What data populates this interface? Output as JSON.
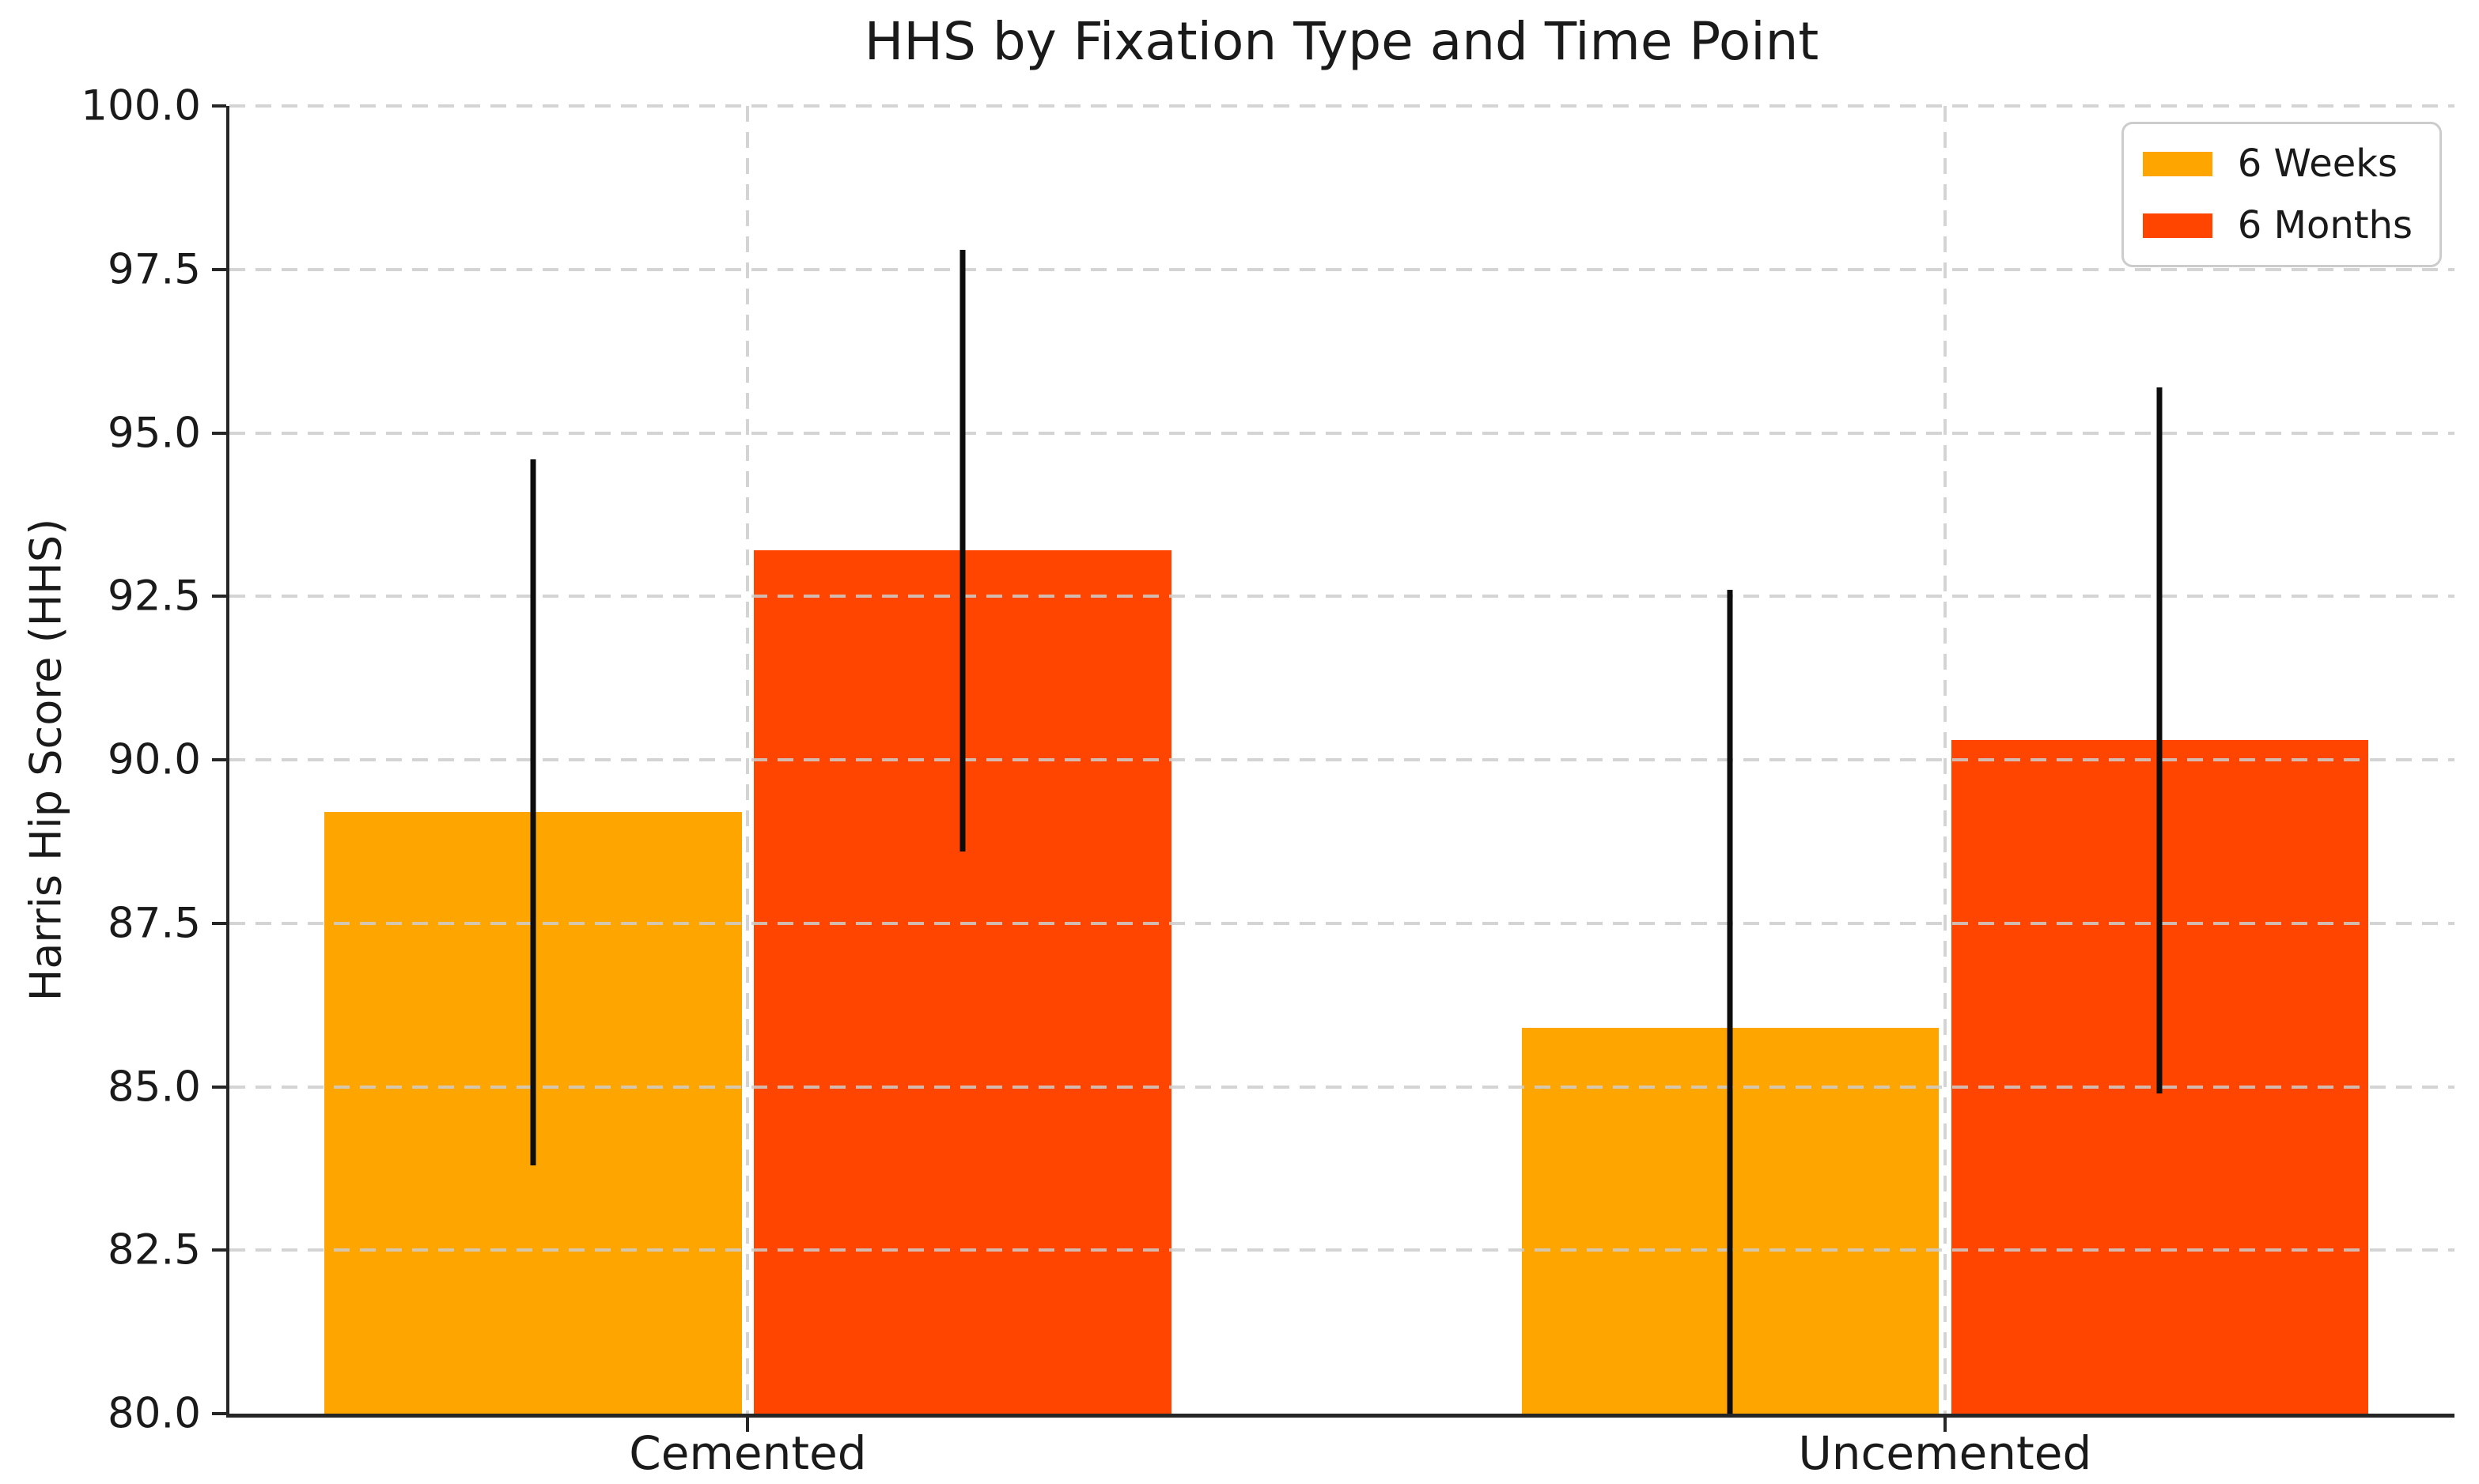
{
  "chart_data": {
    "type": "bar",
    "title": "HHS by Fixation Type and Time Point",
    "xlabel": "",
    "ylabel": "Harris Hip Score (HHS)",
    "categories": [
      "Cemented",
      "Uncemented"
    ],
    "series": [
      {
        "name": "6 Weeks",
        "color": "#FFA500",
        "values": [
          89.2,
          85.9
        ],
        "errors": [
          5.4,
          6.7
        ]
      },
      {
        "name": "6 Months",
        "color": "#FF4500",
        "values": [
          93.2,
          90.3
        ],
        "errors": [
          4.6,
          5.4
        ]
      }
    ],
    "ylim": [
      80.0,
      100.0
    ],
    "yticks": [
      80.0,
      82.5,
      85.0,
      87.5,
      90.0,
      92.5,
      95.0,
      97.5,
      100.0
    ],
    "ytick_labels": [
      "80.0",
      "82.5",
      "85.0",
      "87.5",
      "90.0",
      "92.5",
      "95.0",
      "97.5",
      "100.0"
    ],
    "grid": "both",
    "grid_style": "dashed",
    "legend_position": "upper right",
    "error_bar_color": "#000000",
    "background_color": "#ffffff"
  }
}
